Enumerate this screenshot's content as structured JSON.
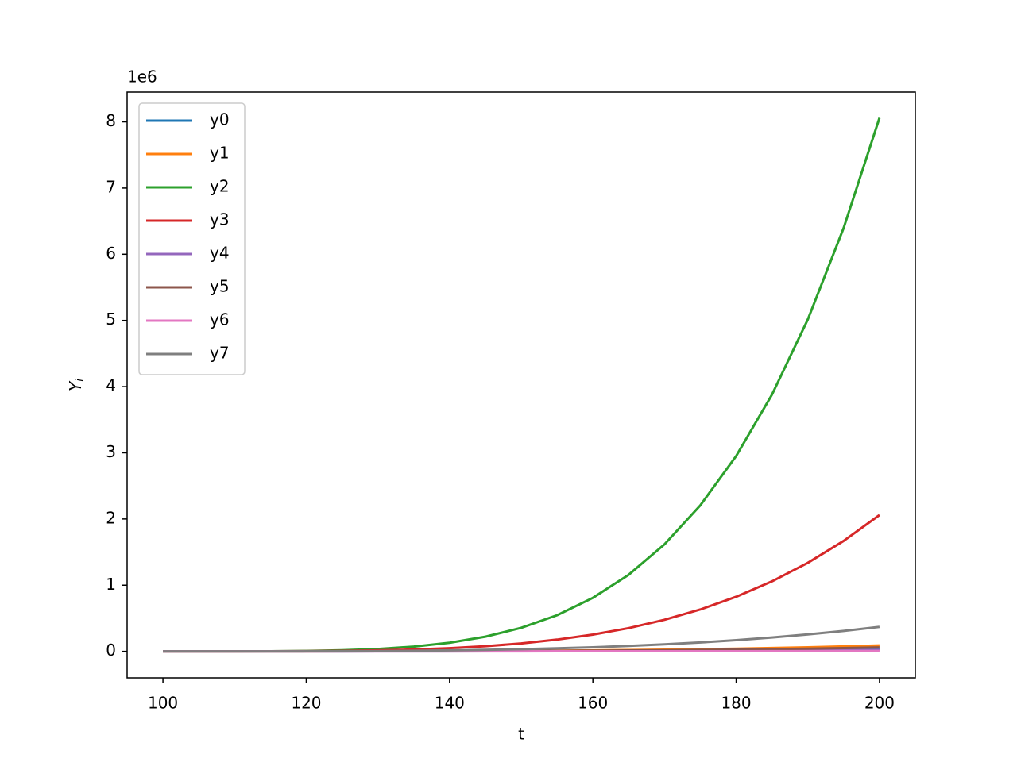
{
  "chart_data": {
    "type": "line",
    "xlabel": "t",
    "ylabel": "Yi",
    "y_offset_label": "1e6",
    "x": [
      100,
      105,
      110,
      115,
      120,
      125,
      130,
      135,
      140,
      145,
      150,
      155,
      160,
      165,
      170,
      175,
      180,
      185,
      190,
      195,
      200
    ],
    "series": [
      {
        "name": "y0",
        "color": "#1f77b4",
        "values": [
          0,
          0,
          0,
          0,
          0,
          0,
          0.001,
          0.001,
          0.002,
          0.002,
          0.004,
          0.005,
          0.007,
          0.009,
          0.011,
          0.015,
          0.018,
          0.023,
          0.028,
          0.033,
          0.04
        ]
      },
      {
        "name": "y1",
        "color": "#ff7f0e",
        "values": [
          0,
          0,
          0,
          0,
          0,
          0.001,
          0.001,
          0.002,
          0.004,
          0.005,
          0.008,
          0.011,
          0.015,
          0.02,
          0.026,
          0.033,
          0.041,
          0.051,
          0.062,
          0.075,
          0.09
        ]
      },
      {
        "name": "y2",
        "color": "#2ca02c",
        "values": [
          0,
          0,
          0,
          0.002,
          0.006,
          0.016,
          0.036,
          0.072,
          0.131,
          0.222,
          0.356,
          0.546,
          0.809,
          1.158,
          1.618,
          2.207,
          2.952,
          3.88,
          5.015,
          6.397,
          8.06
        ]
      },
      {
        "name": "y3",
        "color": "#d62728",
        "values": [
          0,
          0,
          0,
          0.001,
          0.003,
          0.007,
          0.015,
          0.028,
          0.048,
          0.078,
          0.12,
          0.178,
          0.254,
          0.352,
          0.478,
          0.633,
          0.825,
          1.058,
          1.338,
          1.669,
          2.06
        ]
      },
      {
        "name": "y4",
        "color": "#9467bd",
        "values": [
          0,
          0,
          0,
          0,
          0,
          0,
          0,
          0,
          0,
          0.001,
          0.002,
          0.002,
          0.003,
          0.004,
          0.006,
          0.007,
          0.009,
          0.011,
          0.014,
          0.017,
          0.02
        ]
      },
      {
        "name": "y5",
        "color": "#8c564b",
        "values": [
          0,
          0,
          0,
          0,
          0,
          0,
          0.001,
          0.002,
          0.002,
          0.004,
          0.005,
          0.007,
          0.01,
          0.013,
          0.017,
          0.022,
          0.027,
          0.034,
          0.041,
          0.05,
          0.06
        ]
      },
      {
        "name": "y6",
        "color": "#e377c2",
        "values": [
          0,
          0,
          0,
          0,
          0,
          0,
          0,
          0,
          0,
          0,
          0,
          0.001,
          0.001,
          0.001,
          0.001,
          0.002,
          0.002,
          0.003,
          0.003,
          0.004,
          0.005
        ]
      },
      {
        "name": "y7",
        "color": "#7f7f7f",
        "values": [
          0,
          0,
          0,
          0,
          0.001,
          0.003,
          0.005,
          0.009,
          0.015,
          0.023,
          0.033,
          0.046,
          0.062,
          0.082,
          0.106,
          0.135,
          0.169,
          0.21,
          0.256,
          0.309,
          0.37
        ]
      }
    ],
    "xlim": [
      95,
      205
    ],
    "ylim": [
      -0.4,
      8.45
    ],
    "xticks": [
      100,
      120,
      140,
      160,
      180,
      200
    ],
    "yticks": [
      0,
      1,
      2,
      3,
      4,
      5,
      6,
      7,
      8
    ],
    "grid": false,
    "legend": "upper-left"
  }
}
